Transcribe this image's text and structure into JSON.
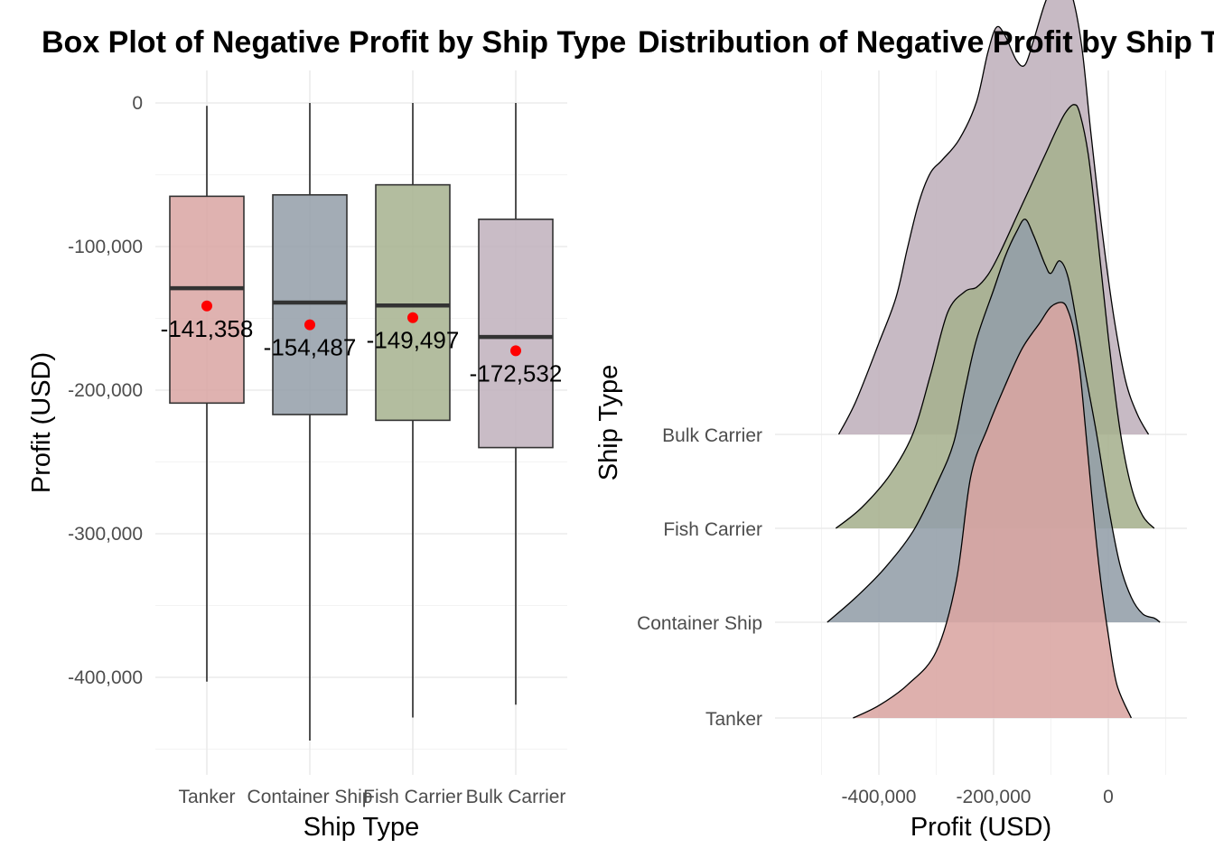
{
  "chart_data": [
    {
      "type": "box",
      "title": "Box Plot of Negative Profit by Ship Type",
      "xlabel": "Ship Type",
      "ylabel": "Profit (USD)",
      "ylim": [
        -450000,
        10000
      ],
      "yticks": [
        0,
        -100000,
        -200000,
        -300000,
        -400000
      ],
      "ytick_labels": [
        "0",
        "-100,000",
        "-200,000",
        "-300,000",
        "-400,000"
      ],
      "grid": true,
      "categories": [
        "Tanker",
        "Container Ship",
        "Fish Carrier",
        "Bulk Carrier"
      ],
      "boxes": [
        {
          "category": "Tanker",
          "min": -403000,
          "q1": -209000,
          "median": -129000,
          "q3": -65000,
          "max": -2000,
          "mean": -141358,
          "mean_label": "-141,358",
          "color": "#d9a5a2"
        },
        {
          "category": "Container Ship",
          "min": -444000,
          "q1": -217000,
          "median": -139000,
          "q3": -64000,
          "max": 0,
          "mean": -154487,
          "mean_label": "-154,487",
          "color": "#939ea8"
        },
        {
          "category": "Fish Carrier",
          "min": -428000,
          "q1": -221000,
          "median": -141000,
          "q3": -57000,
          "max": 0,
          "mean": -149497,
          "mean_label": "-149,497",
          "color": "#a6b18e"
        },
        {
          "category": "Bulk Carrier",
          "min": -419000,
          "q1": -240000,
          "median": -163000,
          "q3": -81000,
          "max": 0,
          "mean": -172532,
          "mean_label": "-172,532",
          "color": "#bfb0bc"
        }
      ],
      "mean_point_color": "#ff0000"
    },
    {
      "type": "ridgeline",
      "title": "Distribution of Negative Profit by Ship Type",
      "xlabel": "Profit (USD)",
      "ylabel": "Ship Type",
      "xlim": [
        -500000,
        30000
      ],
      "xticks": [
        -400000,
        -200000,
        0
      ],
      "xtick_labels": [
        "-400,000",
        "-200,000",
        "0"
      ],
      "grid": true,
      "series": [
        {
          "name": "Tanker",
          "color": "#d9a5a2",
          "x": [
            -445000,
            -400000,
            -350000,
            -300000,
            -265000,
            -240000,
            -210000,
            -180000,
            -150000,
            -120000,
            -100000,
            -80000,
            -70000,
            -60000,
            -50000,
            -40000,
            -30000,
            -15000,
            0,
            15000,
            40000
          ],
          "density": [
            0.0,
            0.03,
            0.08,
            0.16,
            0.33,
            0.58,
            0.7,
            0.8,
            0.89,
            0.95,
            0.99,
            1.0,
            0.98,
            0.93,
            0.84,
            0.7,
            0.55,
            0.35,
            0.2,
            0.08,
            0.0
          ]
        },
        {
          "name": "Container Ship",
          "color": "#939ea8",
          "x": [
            -490000,
            -440000,
            -390000,
            -340000,
            -300000,
            -270000,
            -250000,
            -230000,
            -200000,
            -180000,
            -160000,
            -145000,
            -130000,
            -110000,
            -100000,
            -85000,
            -70000,
            -55000,
            -40000,
            -20000,
            0,
            20000,
            40000,
            60000,
            80000,
            90000
          ],
          "density": [
            0.0,
            0.06,
            0.13,
            0.22,
            0.33,
            0.43,
            0.56,
            0.68,
            0.8,
            0.88,
            0.94,
            0.97,
            0.93,
            0.86,
            0.84,
            0.87,
            0.83,
            0.72,
            0.6,
            0.45,
            0.28,
            0.14,
            0.06,
            0.02,
            0.01,
            0.0
          ]
        },
        {
          "name": "Fish Carrier",
          "color": "#a6b18e",
          "x": [
            -475000,
            -430000,
            -380000,
            -340000,
            -310000,
            -280000,
            -250000,
            -230000,
            -210000,
            -190000,
            -160000,
            -130000,
            -110000,
            -90000,
            -75000,
            -60000,
            -50000,
            -35000,
            -20000,
            0,
            20000,
            40000,
            60000,
            80000
          ],
          "density": [
            0.0,
            0.05,
            0.13,
            0.23,
            0.37,
            0.52,
            0.57,
            0.58,
            0.61,
            0.66,
            0.75,
            0.84,
            0.9,
            0.96,
            1.0,
            1.02,
            1.0,
            0.9,
            0.72,
            0.46,
            0.24,
            0.1,
            0.03,
            0.0
          ]
        },
        {
          "name": "Bulk Carrier",
          "color": "#bfb0bc",
          "x": [
            -470000,
            -440000,
            -400000,
            -370000,
            -350000,
            -330000,
            -310000,
            -290000,
            -260000,
            -230000,
            -210000,
            -195000,
            -180000,
            -160000,
            -145000,
            -130000,
            -110000,
            -90000,
            -75000,
            -60000,
            -45000,
            -30000,
            -10000,
            10000,
            30000,
            50000,
            70000
          ],
          "density": [
            0.0,
            0.08,
            0.22,
            0.33,
            0.45,
            0.56,
            0.63,
            0.66,
            0.71,
            0.8,
            0.92,
            0.98,
            0.96,
            0.9,
            0.89,
            0.95,
            1.04,
            1.1,
            1.09,
            1.04,
            0.92,
            0.72,
            0.48,
            0.28,
            0.13,
            0.05,
            0.0
          ]
        }
      ]
    }
  ]
}
